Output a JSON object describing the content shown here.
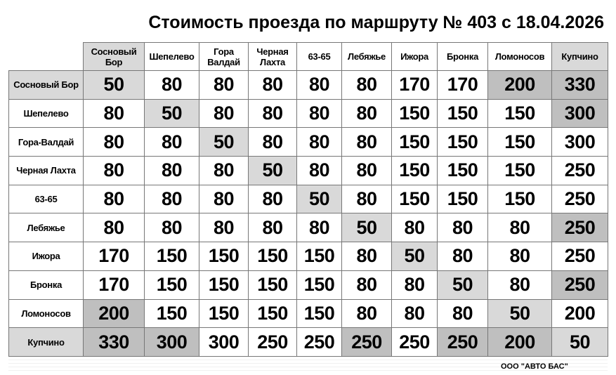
{
  "title": "Стоимость проезда по маршруту № 403 с 18.04.2026",
  "stops": [
    "Сосновый Бор",
    "Шепелево",
    "Гора Валдай",
    "Черная Лахта",
    "63-65",
    "Лебяжье",
    "Ижора",
    "Бронка",
    "Ломоносов",
    "Купчино"
  ],
  "row_labels": [
    "Сосновый Бор",
    "Шепелево",
    "Гора-Валдай",
    "Черная Лахта",
    "63-65",
    "Лебяжье",
    "Ижора",
    "Бронка",
    "Ломоносов",
    "Купчино"
  ],
  "fares": [
    [
      50,
      80,
      80,
      80,
      80,
      80,
      170,
      170,
      200,
      330
    ],
    [
      80,
      50,
      80,
      80,
      80,
      80,
      150,
      150,
      150,
      300
    ],
    [
      80,
      80,
      50,
      80,
      80,
      80,
      150,
      150,
      150,
      300
    ],
    [
      80,
      80,
      80,
      50,
      80,
      80,
      150,
      150,
      150,
      250
    ],
    [
      80,
      80,
      80,
      80,
      50,
      80,
      150,
      150,
      150,
      250
    ],
    [
      80,
      80,
      80,
      80,
      80,
      50,
      80,
      80,
      80,
      250
    ],
    [
      170,
      150,
      150,
      150,
      150,
      80,
      50,
      80,
      80,
      250
    ],
    [
      170,
      150,
      150,
      150,
      150,
      80,
      80,
      50,
      80,
      250
    ],
    [
      200,
      150,
      150,
      150,
      150,
      80,
      80,
      80,
      50,
      200
    ],
    [
      330,
      300,
      300,
      250,
      250,
      250,
      250,
      250,
      200,
      50
    ]
  ],
  "shading": [
    [
      1,
      0,
      0,
      0,
      0,
      0,
      0,
      0,
      2,
      2
    ],
    [
      0,
      1,
      0,
      0,
      0,
      0,
      0,
      0,
      0,
      2
    ],
    [
      0,
      0,
      1,
      0,
      0,
      0,
      0,
      0,
      0,
      0
    ],
    [
      0,
      0,
      0,
      1,
      0,
      0,
      0,
      0,
      0,
      0
    ],
    [
      0,
      0,
      0,
      0,
      1,
      0,
      0,
      0,
      0,
      0
    ],
    [
      0,
      0,
      0,
      0,
      0,
      1,
      0,
      0,
      0,
      2
    ],
    [
      0,
      0,
      0,
      0,
      0,
      0,
      1,
      0,
      0,
      0
    ],
    [
      0,
      0,
      0,
      0,
      0,
      0,
      0,
      1,
      0,
      2
    ],
    [
      2,
      0,
      0,
      0,
      0,
      0,
      0,
      0,
      1,
      0
    ],
    [
      2,
      2,
      0,
      0,
      0,
      2,
      0,
      2,
      2,
      1
    ]
  ],
  "header_shading": [
    1,
    0,
    0,
    0,
    0,
    0,
    0,
    0,
    0,
    1
  ],
  "row_header_shading": [
    1,
    0,
    0,
    0,
    0,
    0,
    0,
    0,
    0,
    1
  ],
  "colors": {
    "light": "#d9d9d9",
    "dark": "#bfbfbf"
  },
  "footer": "ООО \"АВТО БАС\""
}
